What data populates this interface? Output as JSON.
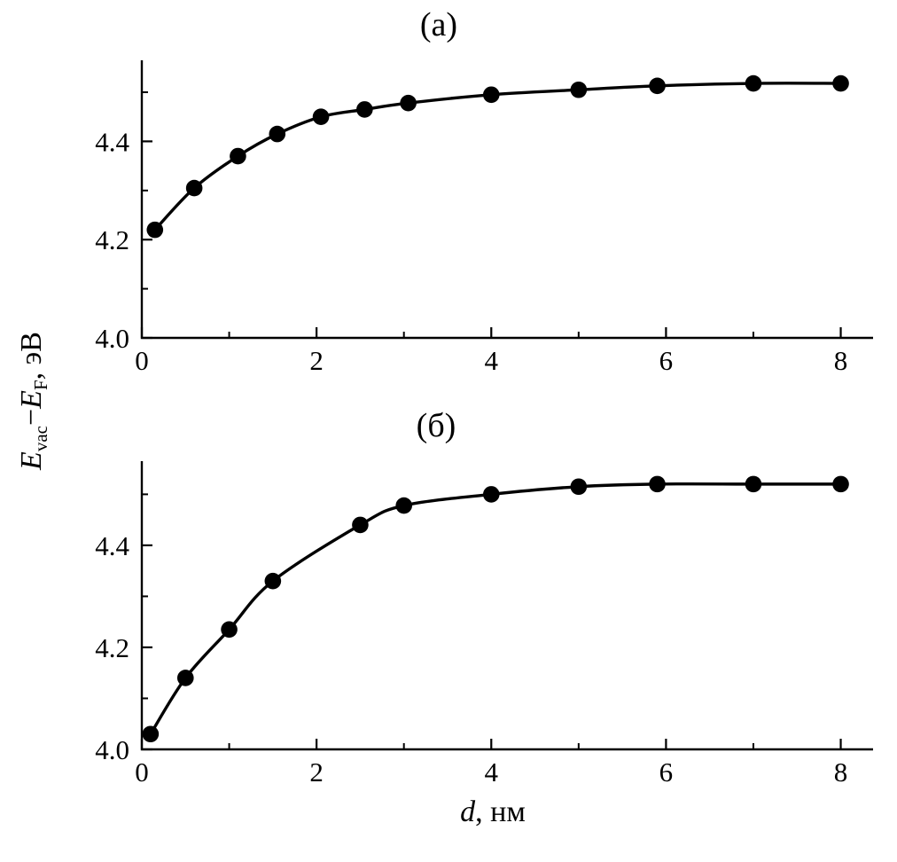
{
  "figure": {
    "background": "#ffffff",
    "ink_color": "#000000"
  },
  "axes": {
    "x_label": {
      "variable": "d",
      "rest": ", нм"
    },
    "y_label": {
      "E1": "E",
      "sub1": "vac",
      "minus": "−",
      "E2": "E",
      "sub2": "F",
      "rest": ", эВ"
    }
  },
  "chart_data": [
    {
      "type": "line",
      "panel": "top",
      "title": "(а)",
      "xlabel": "d, нм",
      "ylabel": "E_vac − E_F, эВ",
      "xlim": [
        0,
        8.37
      ],
      "ylim": [
        4.0,
        4.565
      ],
      "x_ticks": {
        "major": [
          0,
          2,
          4,
          6,
          8
        ],
        "labels": [
          "0",
          "2",
          "4",
          "6",
          "8"
        ],
        "minor": [
          1,
          3,
          5,
          7
        ]
      },
      "y_ticks": {
        "major": [
          4.0,
          4.2,
          4.4
        ],
        "labels": [
          "4.0",
          "4.2",
          "4.4"
        ],
        "minor": [
          4.1,
          4.3,
          4.5
        ]
      },
      "grid": false,
      "legend": "none",
      "marker": "filled-circle",
      "line_color": "#000000",
      "series": [
        {
          "name": "Evac-EF-vs-d-panel-a",
          "x": [
            0.15,
            0.6,
            1.1,
            1.55,
            2.05,
            2.55,
            3.05,
            4.0,
            5.0,
            5.9,
            7.0,
            8.0
          ],
          "y": [
            4.22,
            4.305,
            4.37,
            4.415,
            4.45,
            4.465,
            4.478,
            4.495,
            4.505,
            4.513,
            4.518,
            4.518
          ]
        }
      ]
    },
    {
      "type": "line",
      "panel": "bottom",
      "title": "(б)",
      "xlabel": "d, нм",
      "ylabel": "E_vac − E_F, эВ",
      "xlim": [
        0,
        8.37
      ],
      "ylim": [
        4.0,
        4.565
      ],
      "x_ticks": {
        "major": [
          0,
          2,
          4,
          6,
          8
        ],
        "labels": [
          "0",
          "2",
          "4",
          "6",
          "8"
        ],
        "minor": [
          1,
          3,
          5,
          7
        ]
      },
      "y_ticks": {
        "major": [
          4.0,
          4.2,
          4.4
        ],
        "labels": [
          "4.0",
          "4.2",
          "4.4"
        ],
        "minor": [
          4.1,
          4.3,
          4.5
        ]
      },
      "grid": false,
      "legend": "none",
      "marker": "filled-circle",
      "line_color": "#000000",
      "series": [
        {
          "name": "Evac-EF-vs-d-panel-b",
          "x": [
            0.1,
            0.5,
            1.0,
            1.5,
            2.5,
            3.0,
            4.0,
            5.0,
            5.9,
            7.0,
            8.0
          ],
          "y": [
            4.03,
            4.14,
            4.235,
            4.33,
            4.44,
            4.478,
            4.5,
            4.515,
            4.52,
            4.52,
            4.52
          ]
        }
      ]
    }
  ]
}
